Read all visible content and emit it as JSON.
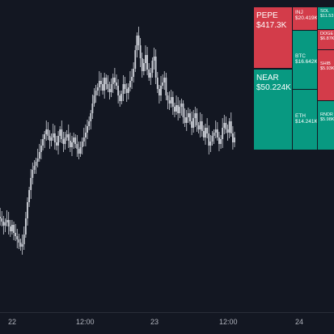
{
  "colors": {
    "background": "#131722",
    "candle": "#d1d4dc",
    "up": "#089981",
    "down": "#d33c4a",
    "axis_text": "#b2b5be"
  },
  "time_axis": {
    "labels": [
      "22",
      "12:00",
      "23",
      "12:00",
      "24"
    ]
  },
  "chart_data": {
    "type": "candlestick",
    "x_ticks": [
      "22",
      "12:00",
      "23",
      "12:00",
      "24"
    ],
    "series_close": [
      268,
      270,
      274,
      279,
      275,
      272,
      280,
      286,
      278,
      288,
      292,
      296,
      300,
      305,
      302,
      290,
      270,
      250,
      235,
      220,
      210,
      205,
      200,
      196,
      188,
      180,
      172,
      166,
      160,
      168,
      174,
      170,
      165,
      176,
      180,
      168,
      160,
      172,
      178,
      170,
      166,
      174,
      182,
      176,
      170,
      178,
      184,
      190,
      182,
      175,
      170,
      164,
      156,
      150,
      140,
      128,
      118,
      112,
      108,
      100,
      104,
      112,
      96,
      104,
      110,
      114,
      104,
      96,
      102,
      106,
      118,
      125,
      116,
      104,
      110,
      115,
      108,
      100,
      95,
      85,
      62,
      44,
      56,
      72,
      88,
      78,
      68,
      86,
      96,
      90,
      75,
      70,
      96,
      110,
      118,
      106,
      102,
      96,
      118,
      124,
      128,
      120,
      132,
      138,
      130,
      140,
      132,
      128,
      145,
      152,
      145,
      140,
      150,
      158,
      146,
      140,
      155,
      160,
      150,
      162,
      170,
      158,
      165,
      180,
      175,
      168,
      164,
      160,
      170,
      178,
      172,
      158,
      152,
      160,
      164,
      150,
      165,
      176,
      170
    ],
    "y_range": [
      40,
      330
    ]
  },
  "heatmap": [
    {
      "symbol": "PEPE",
      "value": "$417.3K",
      "color": "down",
      "size": "big"
    },
    {
      "symbol": "NEAR",
      "value": "$50.224K",
      "color": "up",
      "size": "big"
    },
    {
      "symbol": "INJ",
      "value": "$20.419K",
      "color": "down",
      "size": "mid"
    },
    {
      "symbol": "BTC",
      "value": "$16.642K",
      "color": "up",
      "size": "mid"
    },
    {
      "symbol": "ETH",
      "value": "$14.241K",
      "color": "up",
      "size": "mid"
    },
    {
      "symbol": "SOL",
      "value": "$11.53",
      "color": "up",
      "size": "small"
    },
    {
      "symbol": "DOGE",
      "value": "$6.87K",
      "color": "down",
      "size": "small"
    },
    {
      "symbol": "SHIB",
      "value": "$5.93K",
      "color": "down",
      "size": "small"
    },
    {
      "symbol": "RNDR",
      "value": "$5.98K",
      "color": "up",
      "size": "small"
    }
  ]
}
